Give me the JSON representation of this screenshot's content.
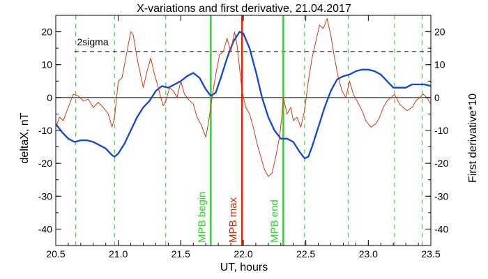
{
  "chart_data": {
    "type": "line",
    "title": "X-variations and first derivative, 21.04.2017",
    "xlabel": "UT, hours",
    "ylabel_left": "deltaX, nT",
    "ylabel_right": "First derivative*10",
    "xlim": [
      20.5,
      23.5
    ],
    "ylim": [
      -45,
      25
    ],
    "x_ticks": [
      "20.5",
      "21.0",
      "21.5",
      "22.0",
      "22.5",
      "23.0",
      "23.5"
    ],
    "x_tick_values": [
      20.5,
      21.0,
      21.5,
      22.0,
      22.5,
      23.0,
      23.5
    ],
    "y_ticks": [
      "20",
      "10",
      "0",
      "-10",
      "-20",
      "-30",
      "-40"
    ],
    "y_tick_values": [
      20,
      10,
      0,
      -10,
      -20,
      -30,
      -40
    ],
    "zero_line": 0,
    "sigma_line": {
      "value": 14,
      "label": "2sigma"
    },
    "dashed_verticals": [
      20.66,
      20.97,
      21.38,
      21.74,
      22.32,
      22.49,
      22.84,
      23.21,
      23.43
    ],
    "markers": [
      {
        "x": 21.74,
        "label": "MPB begin",
        "color": "#22dd22"
      },
      {
        "x": 21.99,
        "label": "MPB max",
        "color": "#ee2200"
      },
      {
        "x": 22.32,
        "label": "MPB end",
        "color": "#22dd22"
      }
    ],
    "series": [
      {
        "color": "#1144dd",
        "points": [
          [
            20.5,
            -8
          ],
          [
            20.55,
            -10.5
          ],
          [
            20.6,
            -12.5
          ],
          [
            20.65,
            -13.5
          ],
          [
            20.7,
            -13
          ],
          [
            20.75,
            -13
          ],
          [
            20.8,
            -13.5
          ],
          [
            20.85,
            -14.5
          ],
          [
            20.9,
            -15.5
          ],
          [
            20.95,
            -17.5
          ],
          [
            20.97,
            -18
          ],
          [
            21.0,
            -17
          ],
          [
            21.05,
            -14
          ],
          [
            21.1,
            -10
          ],
          [
            21.15,
            -6
          ],
          [
            21.2,
            -3
          ],
          [
            21.25,
            -1
          ],
          [
            21.3,
            2
          ],
          [
            21.35,
            3.5
          ],
          [
            21.4,
            3
          ],
          [
            21.45,
            4
          ],
          [
            21.5,
            5
          ],
          [
            21.55,
            6.5
          ],
          [
            21.6,
            7.5
          ],
          [
            21.65,
            6
          ],
          [
            21.7,
            2.5
          ],
          [
            21.74,
            0.5
          ],
          [
            21.78,
            1.5
          ],
          [
            21.82,
            6
          ],
          [
            21.87,
            12
          ],
          [
            21.92,
            17
          ],
          [
            21.97,
            20
          ],
          [
            22.0,
            19.5
          ],
          [
            22.05,
            15
          ],
          [
            22.1,
            8
          ],
          [
            22.15,
            0
          ],
          [
            22.2,
            -6
          ],
          [
            22.25,
            -10
          ],
          [
            22.3,
            -12.5
          ],
          [
            22.35,
            -12.5
          ],
          [
            22.4,
            -13.5
          ],
          [
            22.45,
            -16.5
          ],
          [
            22.49,
            -18.5
          ],
          [
            22.52,
            -18
          ],
          [
            22.55,
            -15
          ],
          [
            22.6,
            -9
          ],
          [
            22.65,
            -3
          ],
          [
            22.7,
            2
          ],
          [
            22.75,
            5.5
          ],
          [
            22.8,
            6.5
          ],
          [
            22.85,
            7
          ],
          [
            22.9,
            8
          ],
          [
            22.95,
            8.5
          ],
          [
            23.0,
            8.5
          ],
          [
            23.05,
            8
          ],
          [
            23.1,
            7
          ],
          [
            23.15,
            5
          ],
          [
            23.2,
            3
          ],
          [
            23.25,
            3
          ],
          [
            23.3,
            3
          ],
          [
            23.35,
            4
          ],
          [
            23.4,
            4
          ],
          [
            23.45,
            4
          ],
          [
            23.5,
            3.5
          ]
        ]
      },
      {
        "color": "#dd3311",
        "points": [
          [
            20.5,
            -9
          ],
          [
            20.53,
            -6
          ],
          [
            20.56,
            -7
          ],
          [
            20.6,
            -3
          ],
          [
            20.64,
            1
          ],
          [
            20.68,
            0.5
          ],
          [
            20.72,
            -1
          ],
          [
            20.76,
            -0.5
          ],
          [
            20.8,
            -3
          ],
          [
            20.84,
            -1.5
          ],
          [
            20.88,
            -3
          ],
          [
            20.92,
            -5
          ],
          [
            20.95,
            -9
          ],
          [
            20.97,
            -6
          ],
          [
            21.0,
            5
          ],
          [
            21.03,
            6
          ],
          [
            21.06,
            12
          ],
          [
            21.1,
            20
          ],
          [
            21.12,
            19
          ],
          [
            21.15,
            12
          ],
          [
            21.2,
            3
          ],
          [
            21.23,
            8
          ],
          [
            21.26,
            12
          ],
          [
            21.29,
            7
          ],
          [
            21.32,
            3
          ],
          [
            21.34,
            0
          ],
          [
            21.36,
            -2.5
          ],
          [
            21.38,
            -1
          ],
          [
            21.41,
            3
          ],
          [
            21.44,
            2
          ],
          [
            21.47,
            0
          ],
          [
            21.5,
            5
          ],
          [
            21.53,
            1
          ],
          [
            21.56,
            -0.5
          ],
          [
            21.6,
            -2
          ],
          [
            21.63,
            -6
          ],
          [
            21.66,
            -8
          ],
          [
            21.7,
            -12
          ],
          [
            21.72,
            -8
          ],
          [
            21.75,
            0
          ],
          [
            21.78,
            7
          ],
          [
            21.81,
            13
          ],
          [
            21.84,
            14
          ],
          [
            21.87,
            18
          ],
          [
            21.9,
            14
          ],
          [
            21.93,
            20
          ],
          [
            21.95,
            16
          ],
          [
            21.97,
            9
          ],
          [
            21.99,
            2
          ],
          [
            22.02,
            -3
          ],
          [
            22.05,
            -5
          ],
          [
            22.08,
            -9
          ],
          [
            22.11,
            -14
          ],
          [
            22.14,
            -18
          ],
          [
            22.17,
            -22
          ],
          [
            22.2,
            -24
          ],
          [
            22.23,
            -23
          ],
          [
            22.26,
            -18
          ],
          [
            22.29,
            -12
          ],
          [
            22.31,
            -5
          ],
          [
            22.32,
            0
          ],
          [
            22.35,
            -5
          ],
          [
            22.38,
            -3
          ],
          [
            22.4,
            -7
          ],
          [
            22.43,
            -6
          ],
          [
            22.46,
            -9
          ],
          [
            22.49,
            -4
          ],
          [
            22.52,
            5
          ],
          [
            22.55,
            12
          ],
          [
            22.58,
            17
          ],
          [
            22.61,
            22
          ],
          [
            22.64,
            21
          ],
          [
            22.67,
            24
          ],
          [
            22.7,
            19
          ],
          [
            22.73,
            12
          ],
          [
            22.76,
            6
          ],
          [
            22.79,
            2
          ],
          [
            22.82,
            0
          ],
          [
            22.85,
            5
          ],
          [
            22.88,
            1
          ],
          [
            22.91,
            -1
          ],
          [
            22.95,
            -4
          ],
          [
            22.98,
            -7
          ],
          [
            23.02,
            -9
          ],
          [
            23.06,
            -8
          ],
          [
            23.09,
            -6
          ],
          [
            23.12,
            -3
          ],
          [
            23.15,
            -1
          ],
          [
            23.18,
            0
          ],
          [
            23.21,
            1
          ],
          [
            23.25,
            -2
          ],
          [
            23.28,
            -3
          ],
          [
            23.31,
            -4
          ],
          [
            23.35,
            -3
          ],
          [
            23.38,
            -1
          ],
          [
            23.41,
            0
          ],
          [
            23.44,
            1
          ],
          [
            23.47,
            0
          ],
          [
            23.5,
            -2
          ]
        ]
      }
    ]
  }
}
